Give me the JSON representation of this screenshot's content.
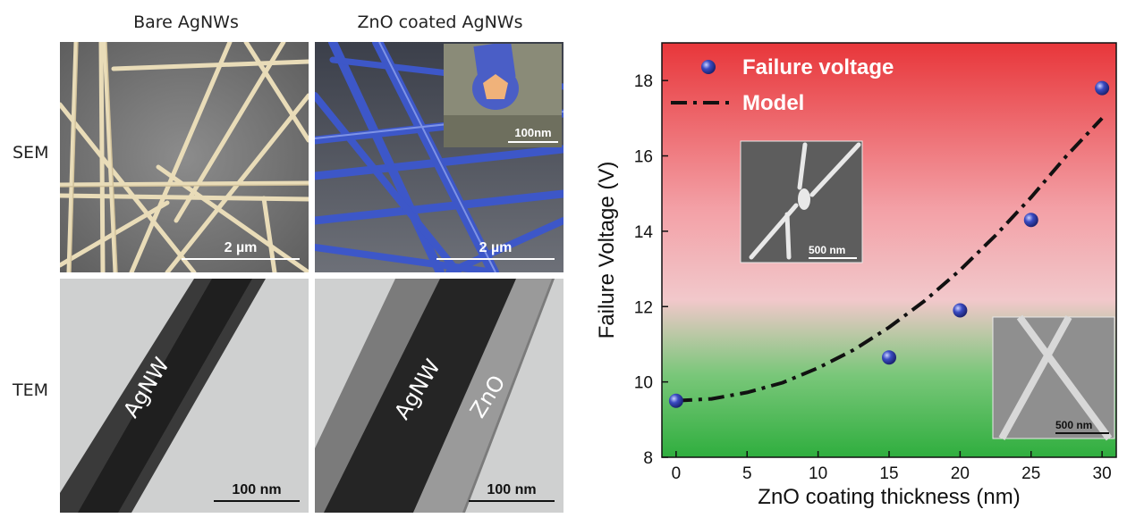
{
  "figure": {
    "columns": [
      "Bare AgNWs",
      "ZnO coated AgNWs"
    ],
    "rows": [
      "SEM",
      "TEM"
    ],
    "scalebars": {
      "sem_bare": "2 µm",
      "sem_zno": "2 µm",
      "sem_zno_inset": "100nm",
      "tem_bare": "100 nm",
      "tem_zno": "100 nm"
    },
    "tem_labels": {
      "bare_core": "AgNW",
      "zno_core": "AgNW",
      "zno_shell": "ZnO"
    }
  },
  "chart_data": {
    "type": "scatter",
    "xlabel": "ZnO coating thickness (nm)",
    "ylabel": "Failure Voltage (V)",
    "xlim": [
      -1,
      31
    ],
    "ylim": [
      8,
      19
    ],
    "xticks": [
      0,
      5,
      10,
      15,
      20,
      25,
      30
    ],
    "yticks": [
      8,
      10,
      12,
      14,
      16,
      18
    ],
    "legend_position": "top-left",
    "series": [
      {
        "name": "Failure voltage",
        "kind": "points",
        "color": "#3344aa",
        "x": [
          0,
          15,
          20,
          25,
          30
        ],
        "y": [
          9.5,
          10.65,
          11.9,
          14.3,
          17.8
        ]
      },
      {
        "name": "Model",
        "kind": "dash-dot line",
        "color": "#111111",
        "x": [
          0,
          2.5,
          5,
          7.5,
          10,
          12.5,
          15,
          17.5,
          20,
          22.5,
          25,
          27.5,
          30
        ],
        "y": [
          9.5,
          9.55,
          9.72,
          9.98,
          10.37,
          10.85,
          11.45,
          12.15,
          12.97,
          13.89,
          14.9,
          16.0,
          17.0
        ]
      }
    ],
    "background": {
      "top_color": "#e8363a",
      "bottom_color": "#2fae3e"
    },
    "insets": [
      {
        "name": "failed-nanowire-inset",
        "scale": "500 nm"
      },
      {
        "name": "intact-nanowire-inset",
        "scale": "500 nm"
      }
    ]
  }
}
